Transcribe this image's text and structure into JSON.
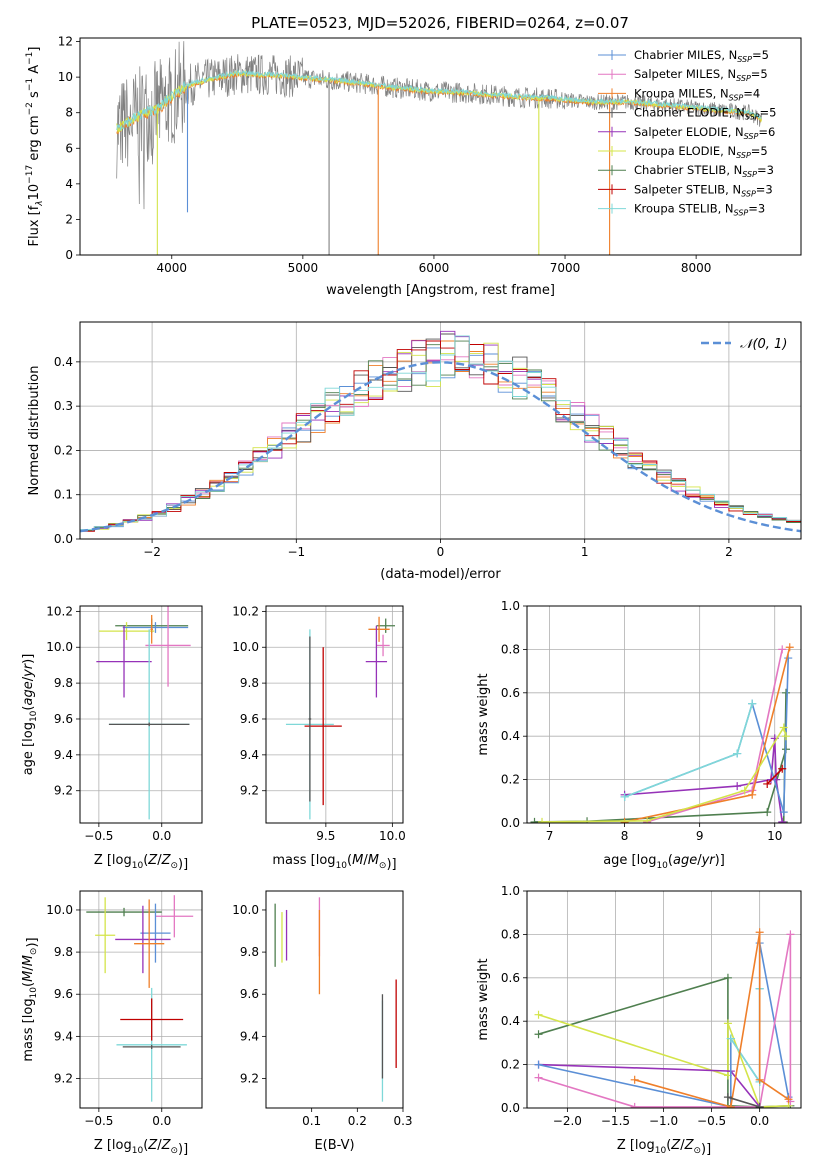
{
  "figure": {
    "title": "PLATE=0523, MJD=52026, FIBERID=0264, z=0.07"
  },
  "chart_data": [
    {
      "id": "spectrum",
      "type": "line",
      "xlabel": "wavelength [Angstrom, rest frame]",
      "ylabel": "Flux [f_λ10^-17 erg cm^-2 s^-1 A^-1]",
      "ylabel_parts": [
        "Flux [f",
        "λ",
        "10",
        "−17",
        " erg cm",
        "−2",
        " s",
        "−1",
        " A",
        "−1",
        "]"
      ],
      "xlim": [
        3300,
        8800
      ],
      "ylim": [
        0,
        12.2
      ],
      "xticks": [
        4000,
        5000,
        6000,
        7000,
        8000
      ],
      "yticks": [
        0,
        2,
        4,
        6,
        8,
        10,
        12
      ],
      "grid": false,
      "legend_position": "top-right",
      "observed_color": "#808080",
      "model_color": "#7fd8d8",
      "model_alt_color": "#d4e44a",
      "model_orange": "#ef7f2a",
      "continuum_points": [
        [
          3580,
          7.1
        ],
        [
          3700,
          7.6
        ],
        [
          3800,
          8.0
        ],
        [
          3900,
          8.2
        ],
        [
          3950,
          8.6
        ],
        [
          4050,
          9.2
        ],
        [
          4150,
          9.6
        ],
        [
          4300,
          9.9
        ],
        [
          4500,
          10.2
        ],
        [
          4800,
          10.1
        ],
        [
          5100,
          9.9
        ],
        [
          5400,
          9.7
        ],
        [
          5700,
          9.4
        ],
        [
          6000,
          9.2
        ],
        [
          6300,
          9.1
        ],
        [
          6600,
          8.9
        ],
        [
          6900,
          8.8
        ],
        [
          7200,
          8.6
        ],
        [
          7500,
          8.6
        ],
        [
          7800,
          8.4
        ],
        [
          8100,
          8.2
        ],
        [
          8400,
          8.0
        ],
        [
          8500,
          7.6
        ]
      ],
      "spikes": [
        {
          "x": 3890,
          "y": 0.0,
          "color": "#d4e44a"
        },
        {
          "x": 5200,
          "y": 0.0,
          "color": "#808080"
        },
        {
          "x": 5575,
          "y": 0.0,
          "color": "#ef7f2a"
        },
        {
          "x": 6800,
          "y": 0.0,
          "color": "#d4e44a"
        },
        {
          "x": 7340,
          "y": 0.0,
          "color": "#ef7f2a"
        },
        {
          "x": 4120,
          "y": 2.4,
          "color": "#5b8fd6"
        }
      ],
      "legend": [
        {
          "label": "Chabrier MILES, N",
          "sub": "SSP",
          "suffix": "=5",
          "color": "#5b8fd6"
        },
        {
          "label": "Salpeter MILES, N",
          "sub": "SSP",
          "suffix": "=5",
          "color": "#e377c2"
        },
        {
          "label": "Kroupa MILES, N",
          "sub": "SSP",
          "suffix": "=4",
          "color": "#ef7f2a"
        },
        {
          "label": "Chabrier ELODIE, N",
          "sub": "SSP",
          "suffix": "=5",
          "color": "#555555"
        },
        {
          "label": "Salpeter ELODIE, N",
          "sub": "SSP",
          "suffix": "=6",
          "color": "#9632b8"
        },
        {
          "label": "Kroupa ELODIE, N",
          "sub": "SSP",
          "suffix": "=5",
          "color": "#d4e44a"
        },
        {
          "label": "Chabrier STELIB, N",
          "sub": "SSP",
          "suffix": "=3",
          "color": "#4f7f4f"
        },
        {
          "label": "Salpeter STELIB, N",
          "sub": "SSP",
          "suffix": "=3",
          "color": "#c00000"
        },
        {
          "label": "Kroupa STELIB, N",
          "sub": "SSP",
          "suffix": "=3",
          "color": "#7fd8d8"
        }
      ]
    },
    {
      "id": "residuals",
      "type": "histogram",
      "xlabel": "(data-model)/error",
      "ylabel": "Normed distribution",
      "xlim": [
        -2.5,
        2.5
      ],
      "ylim": [
        0,
        0.49
      ],
      "xticks": [
        -2,
        -1,
        0,
        1,
        2
      ],
      "yticks": [
        0.0,
        0.1,
        0.2,
        0.3,
        0.4
      ],
      "grid": true,
      "legend_position": "top-right",
      "legend": [
        {
          "label": "𝒩(0, 1)",
          "color": "#5b8fd6",
          "style": "dashed"
        }
      ],
      "bin_width": 0.1,
      "series_colors": [
        "#5b8fd6",
        "#e377c2",
        "#ef7f2a",
        "#555555",
        "#9632b8",
        "#d4e44a",
        "#4f7f4f",
        "#c00000",
        "#7fd8d8"
      ]
    },
    {
      "id": "age-vs-Z",
      "type": "errorbar",
      "xlabel": "Z [log10(Z/Z⊙)]",
      "ylabel": "age  [log10(age/yr)]",
      "xlim": [
        -0.65,
        0.32
      ],
      "ylim": [
        9.02,
        10.23
      ],
      "xticks": [
        -0.5,
        0.0
      ],
      "xtick_labels": [
        "−0.5",
        "0.0"
      ],
      "yticks": [
        9.2,
        9.4,
        9.6,
        9.8,
        10.0,
        10.2
      ],
      "grid": true,
      "points": [
        {
          "x": -0.08,
          "xerr": 0.29,
          "y": 10.12,
          "yerr": 0.04,
          "color": "#4f7f4f"
        },
        {
          "x": -0.28,
          "xerr": 0.22,
          "y": 10.09,
          "yerr": 0.05,
          "color": "#d4e44a"
        },
        {
          "x": -0.05,
          "xerr": 0.26,
          "y": 10.11,
          "yerr": 0.03,
          "color": "#5b8fd6"
        },
        {
          "x": 0.05,
          "xerr": 0.18,
          "y": 10.01,
          "yerr": 0.23,
          "color": "#e377c2"
        },
        {
          "x": -0.3,
          "xerr": 0.22,
          "y": 9.92,
          "yerr": 0.2,
          "color": "#9632b8"
        },
        {
          "x": -0.1,
          "xerr": 0.32,
          "y": 9.57,
          "yerr": 0.53,
          "color": "#7fd8d8"
        },
        {
          "x": -0.1,
          "xerr": 0.32,
          "y": 9.57,
          "yerr": 0.01,
          "color": "#555555"
        },
        {
          "x": -0.08,
          "xerr": 0.01,
          "y": 10.1,
          "yerr": 0.08,
          "color": "#ef7f2a"
        }
      ]
    },
    {
      "id": "age-vs-mass",
      "type": "errorbar",
      "xlabel": "mass [log10(M/M⊙)]",
      "ylabel": "",
      "xlim": [
        9.05,
        10.08
      ],
      "ylim": [
        9.02,
        10.23
      ],
      "xticks": [
        9.5,
        10.0
      ],
      "xtick_labels": [
        "9.5",
        "10.0"
      ],
      "yticks": [
        9.2,
        9.4,
        9.6,
        9.8,
        10.0,
        10.2
      ],
      "grid": true,
      "points": [
        {
          "x": 9.95,
          "xerr": 0.07,
          "y": 10.12,
          "yerr": 0.04,
          "color": "#4f7f4f"
        },
        {
          "x": 9.9,
          "xerr": 0.08,
          "y": 10.1,
          "yerr": 0.07,
          "color": "#ef7f2a"
        },
        {
          "x": 9.93,
          "xerr": 0.05,
          "y": 10.01,
          "yerr": 0.06,
          "color": "#e377c2"
        },
        {
          "x": 9.88,
          "xerr": 0.08,
          "y": 9.92,
          "yerr": 0.2,
          "color": "#9632b8"
        },
        {
          "x": 9.38,
          "xerr": 0.18,
          "y": 9.57,
          "yerr": 0.53,
          "color": "#7fd8d8"
        },
        {
          "x": 9.48,
          "xerr": 0.14,
          "y": 9.56,
          "yerr": 0.44,
          "color": "#c00000"
        },
        {
          "x": 9.38,
          "xerr": 0.01,
          "y": 9.6,
          "yerr": 0.46,
          "color": "#555555"
        }
      ]
    },
    {
      "id": "weight-vs-age",
      "type": "line",
      "xlabel": "age  [log10(age/yr)]",
      "ylabel": "mass weight",
      "xlim": [
        6.7,
        10.35
      ],
      "ylim": [
        0,
        1.0
      ],
      "xticks": [
        7,
        8,
        9,
        10
      ],
      "yticks": [
        0.0,
        0.2,
        0.4,
        0.6,
        0.8,
        1.0
      ],
      "grid": true,
      "series": [
        {
          "color": "#4f7f4f",
          "x": [
            6.8,
            7.5,
            9.9,
            10.15,
            10.15,
            10.12
          ],
          "y": [
            0.005,
            0.008,
            0.05,
            0.34,
            0.6,
            0.005
          ]
        },
        {
          "color": "#9632b8",
          "x": [
            8.0,
            9.5,
            9.95,
            10.0,
            10.02,
            10.1
          ],
          "y": [
            0.13,
            0.17,
            0.2,
            0.39,
            0.2,
            0.005
          ]
        },
        {
          "color": "#5b8fd6",
          "x": [
            8.0,
            9.5,
            9.7,
            10.12,
            10.18
          ],
          "y": [
            0.12,
            0.32,
            0.55,
            0.05,
            0.76
          ]
        },
        {
          "color": "#7fd8d8",
          "x": [
            8.0,
            9.5,
            9.7
          ],
          "y": [
            0.12,
            0.32,
            0.55
          ]
        },
        {
          "color": "#e377c2",
          "x": [
            8.3,
            9.7,
            10.1,
            9.7
          ],
          "y": [
            0.005,
            0.15,
            0.8,
            0.15
          ]
        },
        {
          "color": "#ef7f2a",
          "x": [
            8.0,
            9.7,
            10.2
          ],
          "y": [
            0.005,
            0.13,
            0.81
          ]
        },
        {
          "color": "#d4e44a",
          "x": [
            6.9,
            8.3,
            9.6,
            10.12,
            10.15
          ],
          "y": [
            0.005,
            0.01,
            0.15,
            0.44,
            0.4
          ]
        },
        {
          "color": "#c00000",
          "x": [
            9.9,
            10.1
          ],
          "y": [
            0.18,
            0.25
          ]
        }
      ]
    },
    {
      "id": "mass-vs-Z",
      "type": "errorbar",
      "xlabel": "Z [log10(Z/Z⊙)]",
      "ylabel": "mass [log10(M/M⊙)]",
      "xlim": [
        -0.65,
        0.32
      ],
      "ylim": [
        9.06,
        10.09
      ],
      "xticks": [
        -0.5,
        0.0
      ],
      "xtick_labels": [
        "−0.5",
        "0.0"
      ],
      "yticks": [
        9.2,
        9.4,
        9.6,
        9.8,
        10.0
      ],
      "grid": true,
      "points": [
        {
          "x": -0.3,
          "xerr": 0.3,
          "y": 9.99,
          "yerr": 0.02,
          "color": "#4f7f4f"
        },
        {
          "x": 0.1,
          "xerr": 0.15,
          "y": 9.97,
          "yerr": 0.1,
          "color": "#e377c2"
        },
        {
          "x": -0.05,
          "xerr": 0.12,
          "y": 9.89,
          "yerr": 0.14,
          "color": "#5b8fd6"
        },
        {
          "x": -0.15,
          "xerr": 0.22,
          "y": 9.86,
          "yerr": 0.16,
          "color": "#9632b8"
        },
        {
          "x": -0.1,
          "xerr": 0.12,
          "y": 9.84,
          "yerr": 0.21,
          "color": "#ef7f2a"
        },
        {
          "x": -0.45,
          "xerr": 0.08,
          "y": 9.88,
          "yerr": 0.18,
          "color": "#d4e44a"
        },
        {
          "x": -0.08,
          "xerr": 0.28,
          "y": 9.36,
          "yerr": 0.27,
          "color": "#7fd8d8"
        },
        {
          "x": -0.08,
          "xerr": 0.25,
          "y": 9.48,
          "yerr": 0.1,
          "color": "#c00000"
        },
        {
          "x": -0.08,
          "xerr": 0.23,
          "y": 9.35,
          "yerr": 0.01,
          "color": "#555555"
        }
      ]
    },
    {
      "id": "mass-vs-EBV",
      "type": "errorbar",
      "xlabel": "E(B-V)",
      "ylabel": "",
      "xlim": [
        0.0,
        0.3
      ],
      "ylim": [
        9.06,
        10.09
      ],
      "xticks": [
        0.1,
        0.2,
        0.3
      ],
      "xtick_labels": [
        "0.1",
        "0.2",
        "0.3"
      ],
      "yticks": [
        9.2,
        9.4,
        9.6,
        9.8,
        10.0
      ],
      "grid": false,
      "points": [
        {
          "x": 0.02,
          "xerr": 0,
          "y": 9.88,
          "yerr": 0.15,
          "color": "#4f7f4f"
        },
        {
          "x": 0.035,
          "xerr": 0,
          "y": 9.87,
          "yerr": 0.12,
          "color": "#d4e44a"
        },
        {
          "x": 0.045,
          "xerr": 0,
          "y": 9.88,
          "yerr": 0.12,
          "color": "#9632b8"
        },
        {
          "x": 0.117,
          "xerr": 0,
          "y": 9.92,
          "yerr": 0.14,
          "color": "#e377c2"
        },
        {
          "x": 0.117,
          "xerr": 0,
          "y": 9.8,
          "yerr": 0.2,
          "color": "#ef7f2a"
        },
        {
          "x": 0.255,
          "xerr": 0,
          "y": 9.33,
          "yerr": 0.24,
          "color": "#7fd8d8"
        },
        {
          "x": 0.255,
          "xerr": 0,
          "y": 9.4,
          "yerr": 0.2,
          "color": "#555555"
        },
        {
          "x": 0.285,
          "xerr": 0,
          "y": 9.46,
          "yerr": 0.21,
          "color": "#c00000"
        }
      ]
    },
    {
      "id": "weight-vs-Z",
      "type": "line",
      "xlabel": "Z [log10(Z/Z⊙)]",
      "ylabel": "mass weight",
      "xlim": [
        -2.42,
        0.43
      ],
      "ylim": [
        0,
        1.0
      ],
      "xticks": [
        -2.0,
        -1.5,
        -1.0,
        -0.5,
        0.0
      ],
      "xtick_labels": [
        "−2.0",
        "−1.5",
        "−1.0",
        "−0.5",
        "0.0"
      ],
      "yticks": [
        0.0,
        0.2,
        0.4,
        0.6,
        0.8,
        1.0
      ],
      "grid": true,
      "series": [
        {
          "color": "#4f7f4f",
          "x": [
            -2.3,
            -0.33,
            -0.33,
            0.0,
            0.32
          ],
          "y": [
            0.34,
            0.6,
            0.01,
            0.005,
            0.01
          ]
        },
        {
          "color": "#d4e44a",
          "x": [
            -2.3,
            -0.33,
            -0.33,
            0.0,
            0.3
          ],
          "y": [
            0.43,
            0.15,
            0.39,
            0.005,
            0.01
          ]
        },
        {
          "color": "#9632b8",
          "x": [
            -2.3,
            -0.3,
            0.0
          ],
          "y": [
            0.2,
            0.17,
            0.005
          ]
        },
        {
          "color": "#5b8fd6",
          "x": [
            -2.3,
            -0.3,
            -0.3,
            0.0,
            0.0,
            0.0,
            0.3
          ],
          "y": [
            0.2,
            0.005,
            0.32,
            0.12,
            0.55,
            0.76,
            0.05
          ]
        },
        {
          "color": "#7fd8d8",
          "x": [
            -0.3,
            0.0,
            0.0
          ],
          "y": [
            0.32,
            0.12,
            0.55
          ]
        },
        {
          "color": "#e377c2",
          "x": [
            -2.3,
            -1.3,
            0.0,
            0.32,
            0.32
          ],
          "y": [
            0.14,
            0.005,
            0.005,
            0.8,
            0.03
          ]
        },
        {
          "color": "#ef7f2a",
          "x": [
            -1.3,
            -0.3,
            0.0,
            0.0,
            0.3
          ],
          "y": [
            0.13,
            0.005,
            0.81,
            0.13,
            0.04
          ]
        },
        {
          "color": "#555555",
          "x": [
            -0.33,
            0.0
          ],
          "y": [
            0.05,
            0.005
          ]
        }
      ]
    }
  ]
}
